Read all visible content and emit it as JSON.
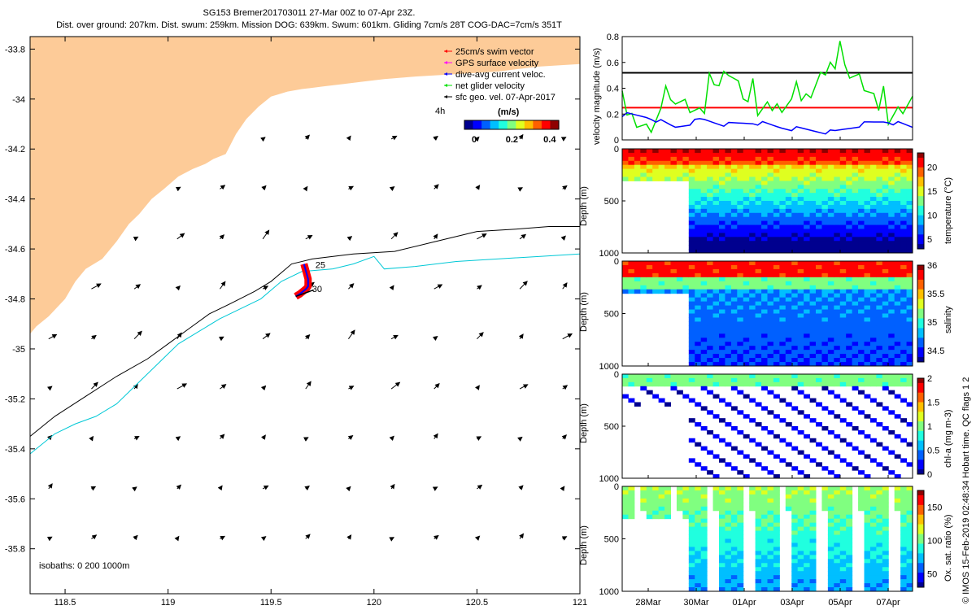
{
  "header": {
    "line1": "SG153 Bremer201703011 27-Mar 00Z to 07-Apr 23Z.",
    "line2": "Dist. over ground: 207km. Dist. swum: 259km. Mission DOG: 639km. Swum: 601km. Gliding 7cm/s 28T COG-DAC=7cm/s 351T"
  },
  "credit": "© IMOS 15-Feb-2019 02:48:34 Hobart time. QC flags 1 2",
  "colors": {
    "land": "#fdcb98",
    "isobath200": "#000000",
    "isobath1000": "#00c8d6",
    "swim": "#ff0000",
    "gps": "#ff00ff",
    "dac": "#0000ff",
    "net": "#00e000",
    "geo": "#000000"
  },
  "chart_data": [
    {
      "type": "map",
      "x_ticks": [
        "118.5",
        "119",
        "119.5",
        "120",
        "120.5",
        "121"
      ],
      "xlim": [
        118.33,
        121
      ],
      "y_ticks": [
        "-33.8",
        "-34",
        "-34.2",
        "-34.4",
        "-34.6",
        "-34.8",
        "-35",
        "-35.2",
        "-35.4",
        "-35.6",
        "-35.8"
      ],
      "ylim": [
        -35.98,
        -33.75
      ],
      "legend": [
        {
          "label": "25cm/s swim vector",
          "color": "#ff0000"
        },
        {
          "label": "GPS surface velocity",
          "color": "#ff00ff"
        },
        {
          "label": "dive-avg current veloc.",
          "color": "#0000ff"
        },
        {
          "label": "net glider velocity",
          "color": "#00e000"
        },
        {
          "label": "sfc geo. vel. 07-Apr-2017",
          "color": "#000000"
        }
      ],
      "legend_placement": "top-right",
      "colorbar": {
        "title": "(m/s)",
        "side_label": "4h",
        "ticks": [
          "0",
          "0.2",
          "0.4"
        ],
        "range": [
          0,
          0.5
        ]
      },
      "isobath_label": "isobaths: 0   200   1000m",
      "track_labels": [
        "25",
        "30"
      ],
      "coastline": [
        [
          118.33,
          -34.94
        ],
        [
          118.36,
          -34.91
        ],
        [
          118.42,
          -34.87
        ],
        [
          118.5,
          -34.8
        ],
        [
          118.55,
          -34.73
        ],
        [
          118.6,
          -34.68
        ],
        [
          118.68,
          -34.64
        ],
        [
          118.75,
          -34.57
        ],
        [
          118.81,
          -34.5
        ],
        [
          118.86,
          -34.46
        ],
        [
          118.92,
          -34.4
        ],
        [
          118.98,
          -34.36
        ],
        [
          119.05,
          -34.31
        ],
        [
          119.12,
          -34.28
        ],
        [
          119.18,
          -34.26
        ],
        [
          119.22,
          -34.24
        ],
        [
          119.28,
          -34.22
        ],
        [
          119.33,
          -34.14
        ],
        [
          119.38,
          -34.08
        ],
        [
          119.44,
          -34.03
        ],
        [
          119.5,
          -33.99
        ],
        [
          119.58,
          -33.97
        ],
        [
          119.65,
          -33.96
        ],
        [
          119.75,
          -33.95
        ],
        [
          119.85,
          -33.94
        ],
        [
          119.95,
          -33.93
        ],
        [
          120.05,
          -33.92
        ],
        [
          120.2,
          -33.91
        ],
        [
          120.4,
          -33.9
        ],
        [
          120.6,
          -33.89
        ],
        [
          120.8,
          -33.87
        ],
        [
          121.0,
          -33.86
        ]
      ],
      "isobath_200": [
        [
          118.33,
          -35.35
        ],
        [
          118.45,
          -35.27
        ],
        [
          118.6,
          -35.19
        ],
        [
          118.75,
          -35.11
        ],
        [
          118.9,
          -35.04
        ],
        [
          119.0,
          -34.98
        ],
        [
          119.1,
          -34.92
        ],
        [
          119.2,
          -34.86
        ],
        [
          119.3,
          -34.82
        ],
        [
          119.42,
          -34.77
        ],
        [
          119.5,
          -34.73
        ],
        [
          119.6,
          -34.66
        ],
        [
          119.7,
          -34.64
        ],
        [
          119.9,
          -34.62
        ],
        [
          120.1,
          -34.61
        ],
        [
          120.3,
          -34.57
        ],
        [
          120.5,
          -34.53
        ],
        [
          120.7,
          -34.52
        ],
        [
          120.85,
          -34.51
        ],
        [
          121.0,
          -34.51
        ]
      ],
      "isobath_1000": [
        [
          118.33,
          -35.42
        ],
        [
          118.45,
          -35.34
        ],
        [
          118.55,
          -35.3
        ],
        [
          118.65,
          -35.27
        ],
        [
          118.75,
          -35.22
        ],
        [
          118.85,
          -35.14
        ],
        [
          118.95,
          -35.06
        ],
        [
          119.05,
          -34.98
        ],
        [
          119.15,
          -34.93
        ],
        [
          119.25,
          -34.88
        ],
        [
          119.35,
          -34.84
        ],
        [
          119.45,
          -34.8
        ],
        [
          119.55,
          -34.73
        ],
        [
          119.65,
          -34.69
        ],
        [
          119.8,
          -34.68
        ],
        [
          119.9,
          -34.66
        ],
        [
          120.0,
          -34.63
        ],
        [
          120.05,
          -34.68
        ],
        [
          120.2,
          -34.67
        ],
        [
          120.4,
          -34.65
        ],
        [
          120.6,
          -34.64
        ],
        [
          120.8,
          -34.63
        ],
        [
          121.0,
          -34.62
        ]
      ],
      "glider_track": [
        [
          119.66,
          -34.66
        ],
        [
          119.67,
          -34.69
        ],
        [
          119.68,
          -34.72
        ],
        [
          119.68,
          -34.75
        ],
        [
          119.67,
          -34.76
        ],
        [
          119.64,
          -34.78
        ],
        [
          119.62,
          -34.79
        ]
      ]
    },
    {
      "type": "line",
      "ylabel": "velocity magnitude (m/s)",
      "ylim": [
        0,
        0.8
      ],
      "y_ticks": [
        "0",
        "0.2",
        "0.4",
        "0.6",
        "0.8"
      ],
      "series": [
        {
          "color": "#000000",
          "values": [
            0.52,
            0.52,
            0.52,
            0.52,
            0.52,
            0.52,
            0.52,
            0.52,
            0.52,
            0.52,
            0.52,
            0.52
          ]
        },
        {
          "color": "#ff0000",
          "values": [
            0.25,
            0.25,
            0.25,
            0.25,
            0.25,
            0.25,
            0.25,
            0.25,
            0.25,
            0.25,
            0.25,
            0.25
          ]
        },
        {
          "color": "#00e000",
          "values": [
            0.22,
            0.05,
            0.32,
            0.18,
            0.55,
            0.2,
            0.25,
            0.3,
            0.6,
            0.45,
            0.15,
            0.28
          ]
        },
        {
          "color": "#0000ff",
          "values": [
            0.2,
            0.18,
            0.1,
            0.16,
            0.12,
            0.14,
            0.1,
            0.08,
            0.06,
            0.12,
            0.15,
            0.1
          ]
        }
      ]
    },
    {
      "type": "heatmap",
      "ylabel": "Depth (m)",
      "y_ticks": [
        "0",
        "500",
        "1000"
      ],
      "ylim": [
        0,
        1000
      ],
      "colorbar_label": "temperature (°C)",
      "colorbar_ticks": [
        "5",
        "10",
        "15",
        "20"
      ],
      "colorbar_range": [
        3,
        23
      ]
    },
    {
      "type": "heatmap",
      "ylabel": "Depth (m)",
      "y_ticks": [
        "0",
        "500",
        "1000"
      ],
      "ylim": [
        0,
        1000
      ],
      "colorbar_label": "salinity",
      "colorbar_ticks": [
        "34.5",
        "35",
        "35.5",
        "36"
      ],
      "colorbar_range": [
        34.3,
        36
      ]
    },
    {
      "type": "scatter",
      "ylabel": "Depth (m)",
      "y_ticks": [
        "0",
        "500",
        "1000"
      ],
      "ylim": [
        0,
        1000
      ],
      "colorbar_label": "chl-a (mg m-3)",
      "colorbar_ticks": [
        "0",
        "0.5",
        "1",
        "1.5",
        "2"
      ],
      "colorbar_range": [
        0,
        2
      ]
    },
    {
      "type": "heatmap",
      "ylabel": "Depth (m)",
      "y_ticks": [
        "0",
        "500",
        "1000"
      ],
      "ylim": [
        0,
        1000
      ],
      "colorbar_label": "Ox. sat. ratio (%)",
      "colorbar_ticks": [
        "50",
        "100",
        "150"
      ],
      "colorbar_range": [
        30,
        175
      ]
    }
  ],
  "time_axis": {
    "ticks": [
      "28Mar",
      "30Mar",
      "01Apr",
      "03Apr",
      "05Apr",
      "07Apr"
    ]
  }
}
